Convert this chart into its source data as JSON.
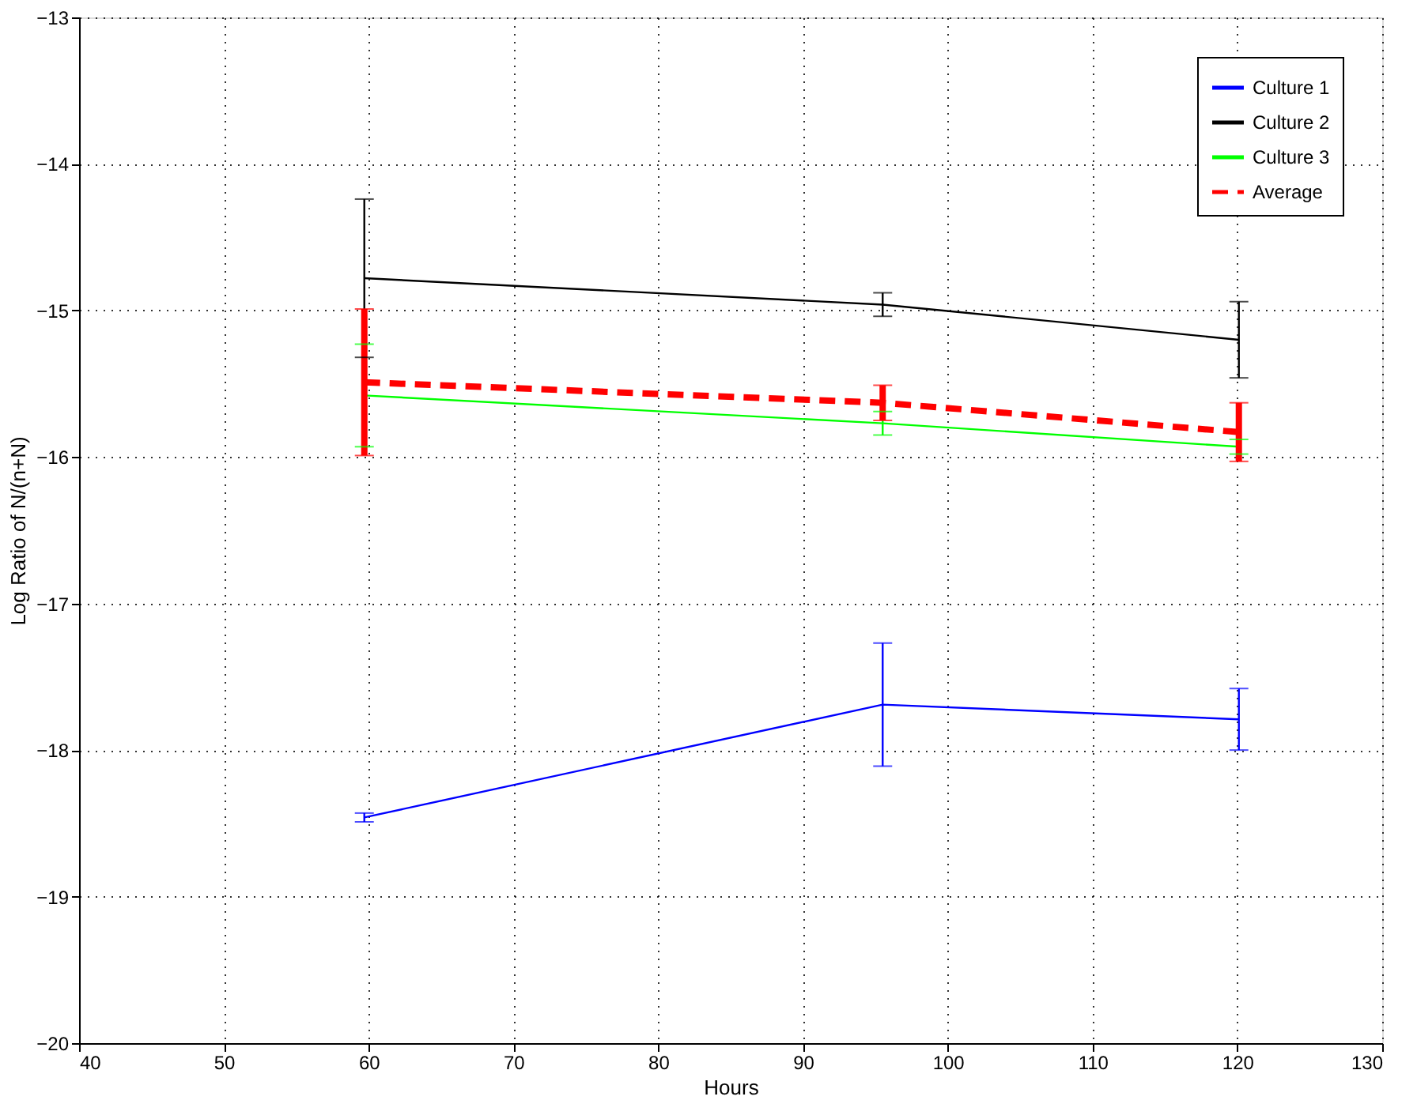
{
  "chart_data": {
    "type": "line",
    "xlabel": "Hours",
    "ylabel": "Log Ratio of N/(n+N)",
    "x": [
      59.7,
      95.5,
      120.1
    ],
    "xlim": [
      40,
      130
    ],
    "xticks": [
      40,
      50,
      60,
      70,
      80,
      90,
      100,
      110,
      120,
      130
    ],
    "ylim": [
      -20,
      -13
    ],
    "yticks": [
      -20,
      -19,
      -18,
      -17,
      -16,
      -15,
      -14,
      -13
    ],
    "grid": true,
    "legend": "top right",
    "marker": "none",
    "series": [
      {
        "name": "Culture 1",
        "color": "#0000ff",
        "line_style": "solid",
        "values": [
          -18.46,
          -17.69,
          -17.79
        ],
        "errors": [
          0.03,
          0.42,
          0.21
        ]
      },
      {
        "name": "Culture 2",
        "color": "#000000",
        "line_style": "solid",
        "values": [
          -14.78,
          -14.96,
          -15.2
        ],
        "errors": [
          0.54,
          0.08,
          0.26
        ]
      },
      {
        "name": "Culture 3",
        "color": "#00ff00",
        "line_style": "solid",
        "values": [
          -15.58,
          -15.77,
          -15.93
        ],
        "errors": [
          0.35,
          0.08,
          0.05
        ]
      },
      {
        "name": "Average",
        "color": "#ff0000",
        "line_style": "dashed",
        "values": [
          -15.49,
          -15.63,
          -15.83
        ],
        "errors": [
          0.5,
          0.12,
          0.2
        ]
      }
    ]
  }
}
